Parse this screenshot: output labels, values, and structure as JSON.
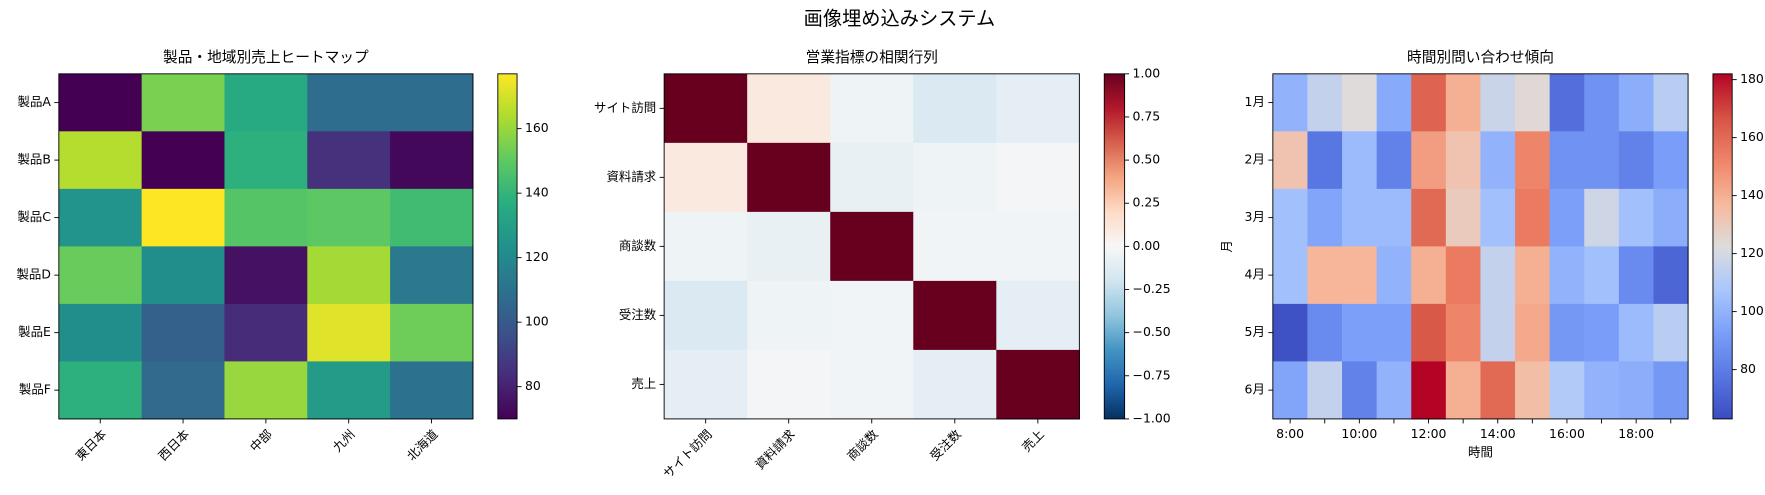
{
  "title": "画像埋め込みシステム",
  "chart_data": [
    {
      "type": "heatmap",
      "title": "製品・地域別売上ヒートマップ",
      "colormap": "viridis",
      "categories": [
        "東日本",
        "西日本",
        "中部",
        "九州",
        "北海道"
      ],
      "rows": [
        "製品A",
        "製品B",
        "製品C",
        "製品D",
        "製品E",
        "製品F"
      ],
      "values": [
        [
          70,
          155,
          135,
          108,
          108
        ],
        [
          165,
          70,
          138,
          85,
          72
        ],
        [
          125,
          177,
          148,
          150,
          143
        ],
        [
          152,
          122,
          75,
          162,
          113
        ],
        [
          122,
          103,
          83,
          172,
          153
        ],
        [
          138,
          107,
          160,
          128,
          110
        ]
      ],
      "clim": [
        70,
        177
      ],
      "cticks": [
        80,
        100,
        120,
        140,
        160
      ]
    },
    {
      "type": "heatmap",
      "title": "営業指標の相関行列",
      "colormap": "RdBu_r",
      "categories": [
        "サイト訪問",
        "資料請求",
        "商談数",
        "受注数",
        "売上"
      ],
      "rows": [
        "サイト訪問",
        "資料請求",
        "商談数",
        "受注数",
        "売上"
      ],
      "values": [
        [
          1,
          0.1,
          -0.05,
          -0.15,
          -0.1
        ],
        [
          0.1,
          1,
          -0.08,
          -0.05,
          -0.02
        ],
        [
          -0.05,
          -0.08,
          1,
          -0.03,
          -0.03
        ],
        [
          -0.15,
          -0.05,
          -0.03,
          1,
          -0.1
        ],
        [
          -0.1,
          -0.02,
          -0.03,
          -0.1,
          1
        ]
      ],
      "clim": [
        -1,
        1
      ],
      "cticks": [
        {
          "value": -1,
          "label": "−1.00"
        },
        {
          "value": -0.75,
          "label": "−0.75"
        },
        {
          "value": -0.5,
          "label": "−0.50"
        },
        {
          "value": -0.25,
          "label": "−0.25"
        },
        {
          "value": 0,
          "label": "0.00"
        },
        {
          "value": 0.25,
          "label": "0.25"
        },
        {
          "value": 0.5,
          "label": "0.50"
        },
        {
          "value": 0.75,
          "label": "0.75"
        },
        {
          "value": 1,
          "label": "1.00"
        }
      ]
    },
    {
      "type": "heatmap",
      "title": "時間別問い合わせ傾向",
      "colormap": "coolwarm",
      "xlabel": "時間",
      "ylabel": "月",
      "categories": [
        "8:00",
        null,
        "10:00",
        null,
        "12:00",
        null,
        "14:00",
        null,
        "16:00",
        null,
        "18:00",
        null
      ],
      "rows": [
        "1月",
        "2月",
        "3月",
        "4月",
        "5月",
        "6月"
      ],
      "values": [
        [
          100,
          115,
          123,
          97,
          162,
          140,
          117,
          124,
          75,
          88,
          98,
          112
        ],
        [
          133,
          78,
          103,
          82,
          145,
          133,
          100,
          152,
          88,
          88,
          82,
          92
        ],
        [
          105,
          95,
          103,
          103,
          160,
          130,
          105,
          155,
          93,
          118,
          105,
          98
        ],
        [
          105,
          138,
          138,
          100,
          140,
          155,
          115,
          140,
          100,
          105,
          85,
          72
        ],
        [
          65,
          85,
          93,
          93,
          165,
          152,
          115,
          142,
          90,
          92,
          103,
          112
        ],
        [
          95,
          115,
          82,
          100,
          182,
          140,
          160,
          135,
          110,
          100,
          98,
          90
        ]
      ],
      "clim": [
        63,
        182
      ],
      "cticks": [
        80,
        100,
        120,
        140,
        160,
        180
      ]
    }
  ]
}
